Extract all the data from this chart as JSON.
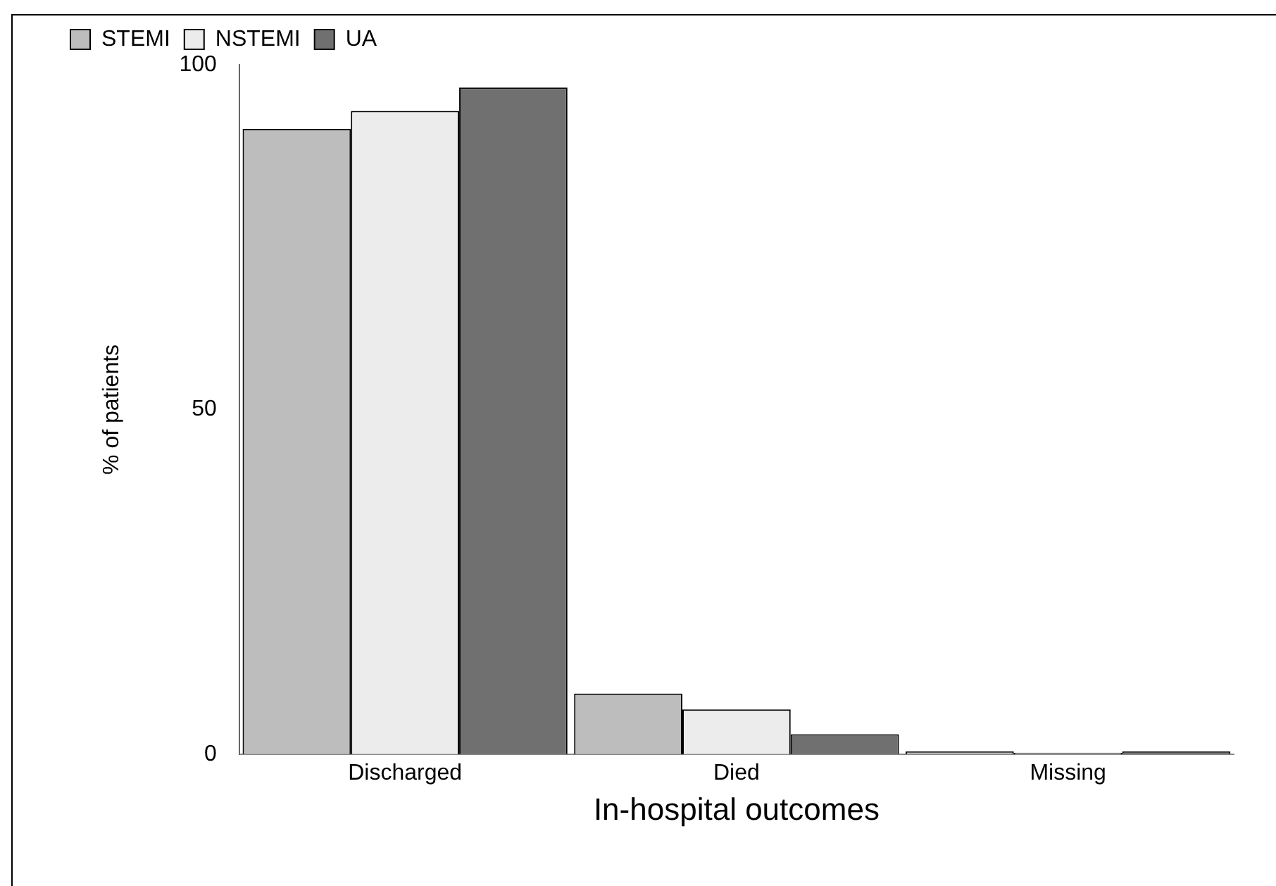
{
  "chart_data": {
    "type": "bar",
    "xlabel": "In-hospital outcomes",
    "ylabel": "% of patients",
    "categories": [
      "Discharged",
      "Died",
      "Missing"
    ],
    "series": [
      {
        "name": "STEMI",
        "color": "#bdbdbd",
        "values": [
          90.7,
          8.8,
          0.4
        ]
      },
      {
        "name": "NSTEMI",
        "color": "#ececec",
        "values": [
          93.3,
          6.5,
          0.2
        ]
      },
      {
        "name": "UA",
        "color": "#707070",
        "values": [
          96.7,
          2.9,
          0.4
        ]
      }
    ],
    "ylim": [
      0,
      100
    ],
    "yticks": [
      0,
      50,
      100
    ],
    "grid": false,
    "legend": "top left"
  }
}
